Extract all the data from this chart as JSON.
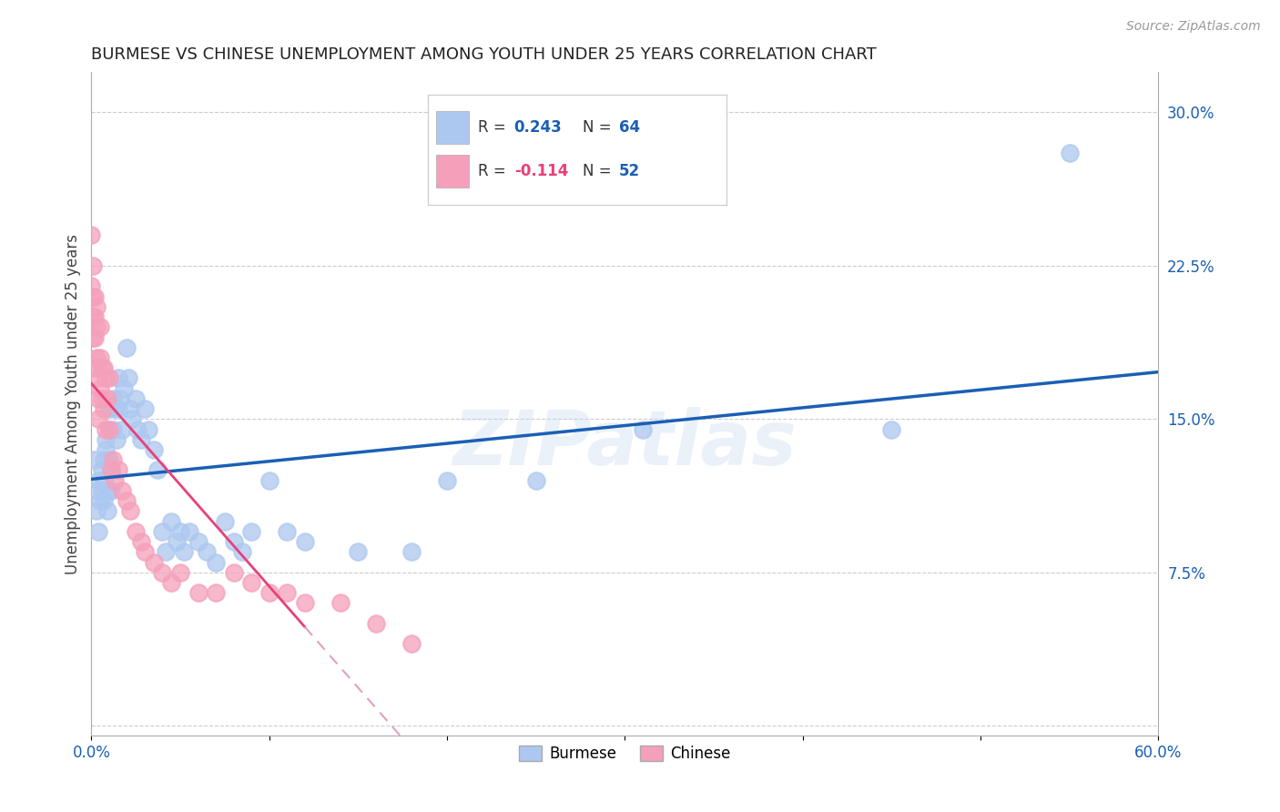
{
  "title": "BURMESE VS CHINESE UNEMPLOYMENT AMONG YOUTH UNDER 25 YEARS CORRELATION CHART",
  "source": "Source: ZipAtlas.com",
  "ylabel": "Unemployment Among Youth under 25 years",
  "xlim": [
    0.0,
    0.6
  ],
  "ylim": [
    -0.005,
    0.32
  ],
  "xticks": [
    0.0,
    0.1,
    0.2,
    0.3,
    0.4,
    0.5,
    0.6
  ],
  "xticklabels": [
    "0.0%",
    "",
    "",
    "",
    "",
    "",
    "60.0%"
  ],
  "yticks_right": [
    0.0,
    0.075,
    0.15,
    0.225,
    0.3
  ],
  "ytick_labels_right": [
    "",
    "7.5%",
    "15.0%",
    "22.5%",
    "30.0%"
  ],
  "R_burmese": 0.243,
  "N_burmese": 64,
  "R_chinese": -0.114,
  "N_chinese": 52,
  "burmese_color": "#adc8f0",
  "chinese_color": "#f5a0ba",
  "burmese_line_color": "#1a5fb4",
  "chinese_line_color": "#e8407a",
  "chinese_line_dash_color": "#e0a0c0",
  "watermark": "ZIPatlas",
  "burmese_x": [
    0.002,
    0.003,
    0.003,
    0.004,
    0.004,
    0.005,
    0.006,
    0.006,
    0.007,
    0.007,
    0.007,
    0.008,
    0.008,
    0.009,
    0.009,
    0.01,
    0.01,
    0.01,
    0.011,
    0.011,
    0.012,
    0.012,
    0.013,
    0.014,
    0.015,
    0.015,
    0.016,
    0.017,
    0.018,
    0.02,
    0.021,
    0.022,
    0.023,
    0.025,
    0.026,
    0.028,
    0.03,
    0.032,
    0.035,
    0.037,
    0.04,
    0.042,
    0.045,
    0.048,
    0.05,
    0.052,
    0.055,
    0.06,
    0.065,
    0.07,
    0.075,
    0.08,
    0.085,
    0.09,
    0.1,
    0.11,
    0.12,
    0.15,
    0.18,
    0.2,
    0.25,
    0.31,
    0.45,
    0.55
  ],
  "burmese_y": [
    0.13,
    0.115,
    0.105,
    0.095,
    0.12,
    0.11,
    0.125,
    0.115,
    0.13,
    0.12,
    0.11,
    0.14,
    0.135,
    0.115,
    0.105,
    0.155,
    0.145,
    0.13,
    0.125,
    0.115,
    0.16,
    0.145,
    0.155,
    0.14,
    0.17,
    0.155,
    0.16,
    0.145,
    0.165,
    0.185,
    0.17,
    0.155,
    0.15,
    0.16,
    0.145,
    0.14,
    0.155,
    0.145,
    0.135,
    0.125,
    0.095,
    0.085,
    0.1,
    0.09,
    0.095,
    0.085,
    0.095,
    0.09,
    0.085,
    0.08,
    0.1,
    0.09,
    0.085,
    0.095,
    0.12,
    0.095,
    0.09,
    0.085,
    0.085,
    0.12,
    0.12,
    0.145,
    0.145,
    0.28
  ],
  "chinese_x": [
    0.0,
    0.0,
    0.001,
    0.001,
    0.001,
    0.001,
    0.002,
    0.002,
    0.002,
    0.002,
    0.003,
    0.003,
    0.003,
    0.004,
    0.004,
    0.004,
    0.005,
    0.005,
    0.005,
    0.006,
    0.006,
    0.007,
    0.007,
    0.008,
    0.008,
    0.009,
    0.01,
    0.01,
    0.011,
    0.012,
    0.013,
    0.015,
    0.017,
    0.02,
    0.022,
    0.025,
    0.028,
    0.03,
    0.035,
    0.04,
    0.045,
    0.05,
    0.06,
    0.07,
    0.08,
    0.09,
    0.1,
    0.11,
    0.12,
    0.14,
    0.16,
    0.18
  ],
  "chinese_y": [
    0.24,
    0.215,
    0.225,
    0.21,
    0.2,
    0.19,
    0.21,
    0.2,
    0.19,
    0.175,
    0.205,
    0.195,
    0.18,
    0.17,
    0.16,
    0.15,
    0.195,
    0.18,
    0.165,
    0.175,
    0.16,
    0.175,
    0.155,
    0.17,
    0.145,
    0.16,
    0.17,
    0.145,
    0.125,
    0.13,
    0.12,
    0.125,
    0.115,
    0.11,
    0.105,
    0.095,
    0.09,
    0.085,
    0.08,
    0.075,
    0.07,
    0.075,
    0.065,
    0.065,
    0.075,
    0.07,
    0.065,
    0.065,
    0.06,
    0.06,
    0.05,
    0.04
  ]
}
